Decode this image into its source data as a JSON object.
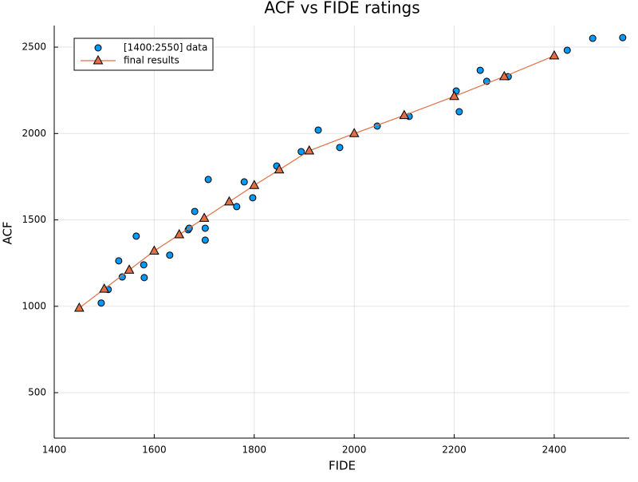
{
  "chart_data": {
    "type": "scatter",
    "title": "ACF vs FIDE ratings",
    "x_label": "FIDE",
    "y_label": "ACF",
    "xlim": [
      1400,
      2550
    ],
    "ylim": [
      237,
      2625
    ],
    "xticks": [
      1400,
      1600,
      1800,
      2000,
      2200,
      2400
    ],
    "yticks": [
      500,
      1000,
      1500,
      2000,
      2500
    ],
    "grid": true,
    "legend_position": "top-left",
    "series": [
      {
        "name": "[1400:2550] data",
        "color": "#009afa",
        "marker": "circle",
        "line": false,
        "x": [
          1494,
          1508,
          1529,
          1536,
          1564,
          1579,
          1580,
          1631,
          1668,
          1670,
          1681,
          1702,
          1702,
          1708,
          1765,
          1780,
          1797,
          1845,
          1894,
          1928,
          1971,
          2046,
          2110,
          2204,
          2210,
          2252,
          2265,
          2308,
          2426,
          2477,
          2537
        ],
        "values": [
          1019,
          1097,
          1263,
          1170,
          1406,
          1240,
          1166,
          1296,
          1443,
          1452,
          1549,
          1452,
          1383,
          1734,
          1577,
          1720,
          1628,
          1812,
          1895,
          2020,
          1919,
          2043,
          2099,
          2246,
          2126,
          2366,
          2302,
          2329,
          2482,
          2551,
          2555
        ]
      },
      {
        "name": "final results",
        "color": "#e26f46",
        "marker": "triangle",
        "line": true,
        "x": [
          1450,
          1500,
          1550,
          1600,
          1650,
          1700,
          1750,
          1800,
          1850,
          1910,
          2000,
          2100,
          2200,
          2300,
          2400
        ],
        "values": [
          990,
          1100,
          1210,
          1320,
          1415,
          1510,
          1605,
          1700,
          1790,
          1900,
          2000,
          2105,
          2215,
          2330,
          2450
        ]
      }
    ]
  }
}
